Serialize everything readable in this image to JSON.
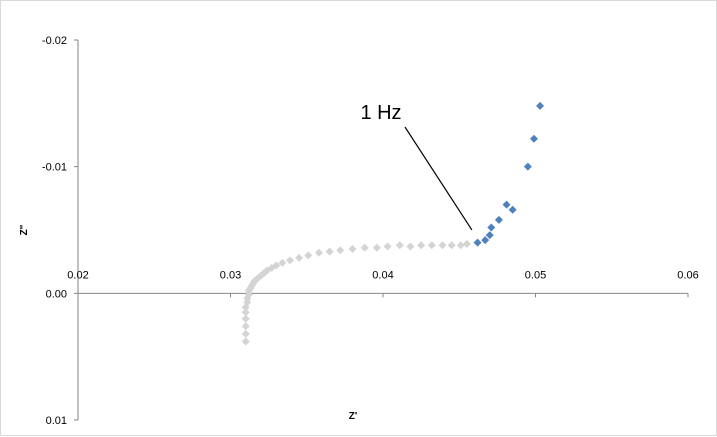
{
  "chart_data": {
    "type": "scatter",
    "title": "",
    "xlabel": "Z'",
    "ylabel": "Z\"",
    "xlim": [
      0.02,
      0.06
    ],
    "ylim": [
      0.01,
      -0.02
    ],
    "y_axis_reversed": true,
    "x_ticks": [
      "0.02",
      "0.03",
      "0.04",
      "0.05",
      "0.06"
    ],
    "y_ticks": [
      "-0.02",
      "-0.01",
      "0.00",
      "0.01"
    ],
    "x_axis_crosses_at_y": 0,
    "grid": false,
    "legend": "none",
    "colors": {
      "low_frequency": "#4f81bd",
      "high_frequency": "#d4d4d4",
      "axis": "#868686"
    },
    "series": [
      {
        "marker": "diamond",
        "color": "#d4d4d4",
        "points": [
          [
            0.031,
            0.0038
          ],
          [
            0.031,
            0.0032
          ],
          [
            0.031,
            0.0026
          ],
          [
            0.031,
            0.002
          ],
          [
            0.031,
            0.0015
          ],
          [
            0.031,
            0.0011
          ],
          [
            0.0311,
            0.0007
          ],
          [
            0.0311,
            0.0004
          ],
          [
            0.0312,
            0.0001
          ],
          [
            0.0312,
            -0.0002
          ],
          [
            0.0313,
            -0.0004
          ],
          [
            0.0314,
            -0.0006
          ],
          [
            0.0315,
            -0.0008
          ],
          [
            0.0316,
            -0.001
          ],
          [
            0.0318,
            -0.0012
          ],
          [
            0.032,
            -0.0014
          ],
          [
            0.0322,
            -0.0016
          ],
          [
            0.0324,
            -0.0018
          ],
          [
            0.0327,
            -0.002
          ],
          [
            0.033,
            -0.0022
          ],
          [
            0.0334,
            -0.0024
          ],
          [
            0.0339,
            -0.0026
          ],
          [
            0.0345,
            -0.0028
          ],
          [
            0.0351,
            -0.003
          ],
          [
            0.0358,
            -0.0032
          ],
          [
            0.0365,
            -0.0033
          ],
          [
            0.0372,
            -0.0034
          ],
          [
            0.038,
            -0.0035
          ],
          [
            0.0388,
            -0.0036
          ],
          [
            0.0396,
            -0.0036
          ],
          [
            0.0403,
            -0.0037
          ],
          [
            0.0411,
            -0.0038
          ],
          [
            0.0418,
            -0.0037
          ],
          [
            0.0425,
            -0.0038
          ],
          [
            0.0432,
            -0.0038
          ],
          [
            0.0439,
            -0.0038
          ],
          [
            0.0445,
            -0.0038
          ],
          [
            0.0451,
            -0.0038
          ],
          [
            0.0455,
            -0.0039
          ]
        ]
      },
      {
        "marker": "diamond",
        "color": "#4f81bd",
        "points": [
          [
            0.0462,
            -0.004
          ],
          [
            0.0467,
            -0.0042
          ],
          [
            0.047,
            -0.0046
          ],
          [
            0.0471,
            -0.0052
          ],
          [
            0.0476,
            -0.0058
          ],
          [
            0.0481,
            -0.007
          ],
          [
            0.0485,
            -0.0066
          ],
          [
            0.0495,
            -0.01
          ],
          [
            0.0499,
            -0.0122
          ],
          [
            0.0503,
            -0.0148
          ]
        ]
      }
    ],
    "annotations": [
      {
        "text": "1 Hz",
        "x": 0.0455,
        "y": -0.0039
      }
    ]
  }
}
